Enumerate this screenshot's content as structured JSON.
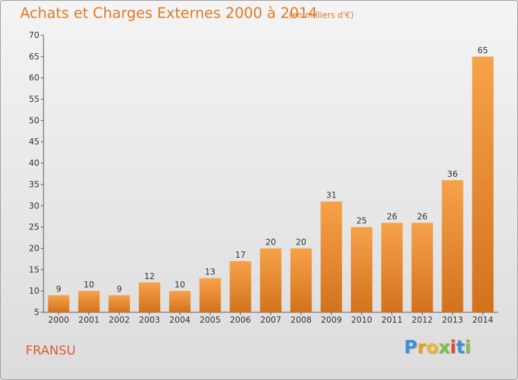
{
  "chart_data": {
    "type": "bar",
    "title": "Achats et Charges Externes 2000 à 2014",
    "subtitle": "(en milliers d'€)",
    "categories": [
      "2000",
      "2001",
      "2002",
      "2003",
      "2004",
      "2005",
      "2006",
      "2007",
      "2008",
      "2009",
      "2010",
      "2011",
      "2012",
      "2013",
      "2014"
    ],
    "values": [
      9,
      10,
      9,
      12,
      10,
      13,
      17,
      20,
      20,
      31,
      25,
      26,
      26,
      36,
      65
    ],
    "data_labels": [
      "9",
      "10",
      "9",
      "12",
      "10",
      "13",
      "17",
      "20",
      "20",
      "31",
      "25",
      "26",
      "26",
      "36",
      "65"
    ],
    "yticks": [
      "5",
      "10",
      "15",
      "20",
      "25",
      "30",
      "35",
      "40",
      "45",
      "50",
      "55",
      "60",
      "65",
      "70"
    ],
    "ylim": [
      5,
      70
    ],
    "xlabel": "",
    "ylabel": "",
    "grid": false,
    "legend": "none",
    "colors": {
      "bar_light": "#f7a24a",
      "bar_dark": "#d2721c",
      "title": "#e07a26"
    }
  },
  "footer": {
    "commune": "FRANSU",
    "brand_letters": [
      {
        "char": "P",
        "color": "#3b8fd8"
      },
      {
        "char": "r",
        "color": "#e8a21c"
      },
      {
        "char": "o",
        "color": "#f0b728"
      },
      {
        "char": "x",
        "color": "#7cc142"
      },
      {
        "char": "i",
        "color": "#e8442c"
      },
      {
        "char": "t",
        "color": "#3b8fd8"
      },
      {
        "char": "i",
        "color": "#7cc142"
      }
    ]
  }
}
